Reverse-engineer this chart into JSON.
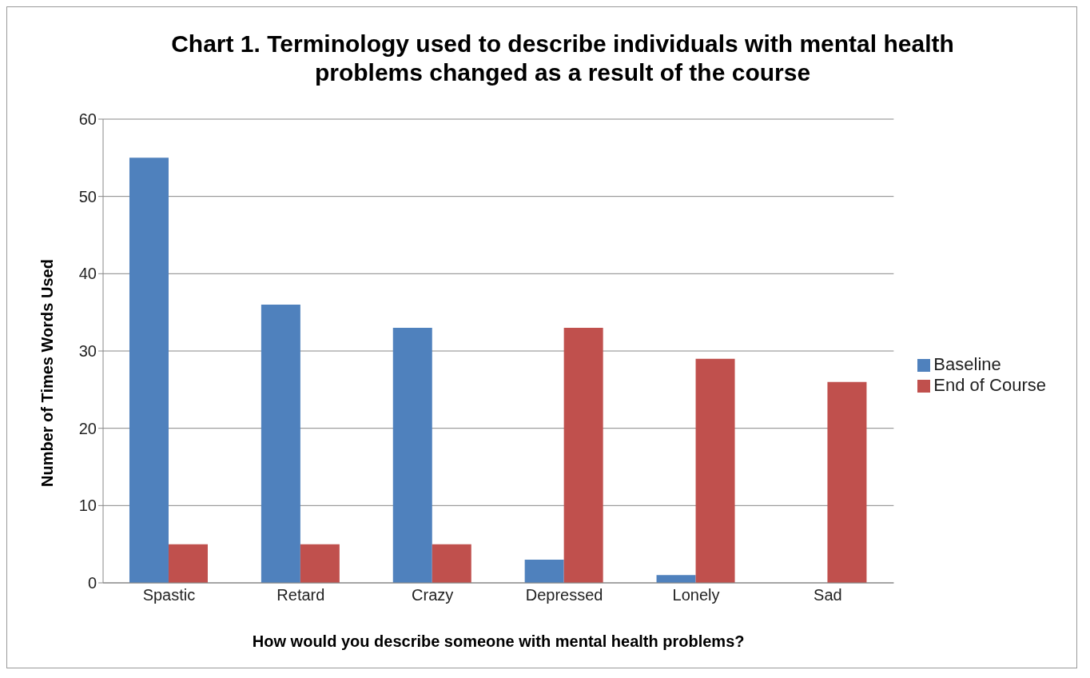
{
  "chart_data": {
    "type": "bar",
    "title": "Chart 1. Terminology used to describe individuals with mental health problems changed as a result of the course",
    "xlabel": "How would you describe someone with mental health problems?",
    "ylabel": "Number of Times Words Used",
    "categories": [
      "Spastic",
      "Retard",
      "Crazy",
      "Depressed",
      "Lonely",
      "Sad"
    ],
    "series": [
      {
        "name": "Baseline",
        "color": "#4f81bd",
        "values": [
          55,
          36,
          33,
          3,
          1,
          0
        ]
      },
      {
        "name": "End of Course",
        "color": "#c0504d",
        "values": [
          5,
          5,
          5,
          33,
          29,
          26
        ]
      }
    ],
    "ylim": [
      0,
      60
    ],
    "yticks": [
      0,
      10,
      20,
      30,
      40,
      50,
      60
    ],
    "grid": "y",
    "legend": "right"
  }
}
